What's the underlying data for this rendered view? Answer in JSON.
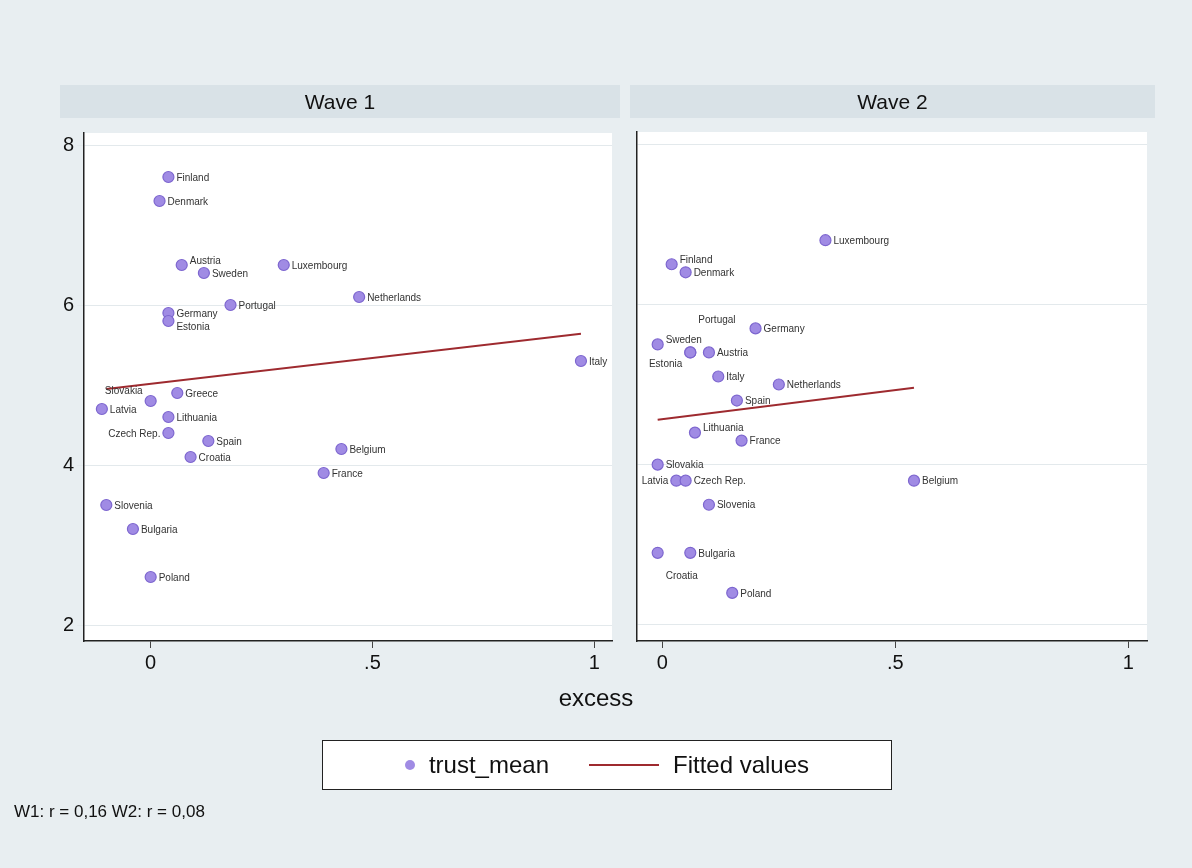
{
  "chart_data": [
    {
      "type": "scatter",
      "title": "Wave 1",
      "xlabel": "excess",
      "xlim": [
        -0.15,
        1.04
      ],
      "ylim": [
        1.8,
        8.15
      ],
      "xticks": [
        {
          "value": 0,
          "label": "0"
        },
        {
          "value": 0.5,
          "label": ".5"
        },
        {
          "value": 1,
          "label": "1"
        }
      ],
      "yticks": [
        2,
        4,
        6,
        8
      ],
      "grid": "y",
      "legend": "bottom",
      "series": [
        {
          "name": "trust_mean",
          "marker": "circle",
          "color": "#a08be4",
          "x": [
            0.04,
            0.02,
            0.07,
            0.12,
            0.3,
            0.47,
            0.18,
            0.04,
            0.04,
            0.97,
            0.06,
            0.0,
            -0.11,
            0.04,
            0.04,
            0.13,
            0.09,
            0.43,
            0.39,
            -0.1,
            -0.04,
            0.0
          ],
          "values": [
            7.6,
            7.3,
            6.5,
            6.4,
            6.5,
            6.1,
            6.0,
            5.9,
            5.8,
            5.3,
            4.9,
            4.8,
            4.7,
            4.6,
            4.4,
            4.3,
            4.1,
            4.2,
            3.9,
            3.5,
            3.2,
            2.6
          ]
        },
        {
          "name": "Fitted values",
          "type": "line",
          "color": "#9e2a2f",
          "x": [
            -0.1,
            0.97
          ],
          "values": [
            4.95,
            5.64
          ]
        }
      ],
      "annotations": [
        {
          "text": "Finland",
          "x": 0.04,
          "y": 7.6
        },
        {
          "text": "Denmark",
          "x": 0.02,
          "y": 7.3
        },
        {
          "text": "Austria",
          "x": 0.07,
          "y": 6.5
        },
        {
          "text": "Sweden",
          "x": 0.12,
          "y": 6.4
        },
        {
          "text": "Luxembourg",
          "x": 0.3,
          "y": 6.5
        },
        {
          "text": "Netherlands",
          "x": 0.47,
          "y": 6.1
        },
        {
          "text": "Portugal",
          "x": 0.18,
          "y": 6.0
        },
        {
          "text": "Germany",
          "x": 0.04,
          "y": 5.9
        },
        {
          "text": "Estonia",
          "x": 0.04,
          "y": 5.8
        },
        {
          "text": "Italy",
          "x": 0.97,
          "y": 5.3
        },
        {
          "text": "Greece",
          "x": 0.06,
          "y": 4.9
        },
        {
          "text": "Slovakia",
          "x": 0.0,
          "y": 4.8
        },
        {
          "text": "Latvia",
          "x": -0.11,
          "y": 4.7
        },
        {
          "text": "Lithuania",
          "x": 0.04,
          "y": 4.6
        },
        {
          "text": "Czech Rep.",
          "x": 0.04,
          "y": 4.4
        },
        {
          "text": "Spain",
          "x": 0.13,
          "y": 4.3
        },
        {
          "text": "Croatia",
          "x": 0.09,
          "y": 4.1
        },
        {
          "text": "Belgium",
          "x": 0.43,
          "y": 4.2
        },
        {
          "text": "France",
          "x": 0.39,
          "y": 3.9
        },
        {
          "text": "Slovenia",
          "x": -0.1,
          "y": 3.5
        },
        {
          "text": "Bulgaria",
          "x": -0.04,
          "y": 3.2
        },
        {
          "text": "Poland",
          "x": 0.0,
          "y": 2.6
        },
        "W1: r = 0,16 W2: r = 0,08"
      ]
    },
    {
      "type": "scatter",
      "title": "Wave 2",
      "xlim": [
        -0.055,
        1.04
      ],
      "ylim": [
        1.8,
        8.15
      ],
      "xticks": [
        {
          "value": 0,
          "label": "0"
        },
        {
          "value": 0.5,
          "label": ".5"
        },
        {
          "value": 1,
          "label": "1"
        }
      ],
      "yticks": [
        2,
        4,
        6,
        8
      ],
      "grid": "y",
      "tick_labels": "x",
      "series": [
        {
          "marker": "circle",
          "color": "#a08be4",
          "x": [
            0.35,
            0.02,
            0.05,
            0.2,
            -0.01,
            0.06,
            0.06,
            0.1,
            0.12,
            0.25,
            0.16,
            0.07,
            0.17,
            -0.01,
            0.03,
            0.05,
            0.54,
            0.1,
            -0.01,
            0.06,
            0.15
          ],
          "values": [
            6.8,
            6.5,
            6.4,
            5.7,
            5.5,
            5.4,
            5.4,
            5.4,
            5.1,
            5.0,
            4.8,
            4.4,
            4.3,
            4.0,
            3.8,
            3.8,
            3.8,
            3.5,
            2.9,
            2.9,
            2.4
          ]
        },
        {
          "type": "line",
          "color": "#9e2a2f",
          "x": [
            -0.01,
            0.54
          ],
          "values": [
            4.56,
            4.96
          ]
        }
      ],
      "annotations": [
        {
          "text": "Luxembourg",
          "x": 0.35,
          "y": 6.8
        },
        {
          "text": "Finland",
          "x": 0.02,
          "y": 6.5
        },
        {
          "text": "Denmark",
          "x": 0.05,
          "y": 6.4
        },
        {
          "text": "Germany",
          "x": 0.2,
          "y": 5.7
        },
        {
          "text": "Sweden",
          "x": -0.01,
          "y": 5.5
        },
        {
          "text": "Estonia",
          "x": 0.06,
          "y": 5.4
        },
        {
          "text": "Portugal",
          "x": 0.06,
          "y": 5.4
        },
        {
          "text": "Austria",
          "x": 0.1,
          "y": 5.4
        },
        {
          "text": "Italy",
          "x": 0.12,
          "y": 5.1
        },
        {
          "text": "Netherlands",
          "x": 0.25,
          "y": 5.0
        },
        {
          "text": "Spain",
          "x": 0.16,
          "y": 4.8
        },
        {
          "text": "Lithuania",
          "x": 0.07,
          "y": 4.4
        },
        {
          "text": "France",
          "x": 0.17,
          "y": 4.3
        },
        {
          "text": "Slovakia",
          "x": -0.01,
          "y": 4.0
        },
        {
          "text": "Latvia",
          "x": 0.03,
          "y": 3.8
        },
        {
          "text": "Czech Rep.",
          "x": 0.05,
          "y": 3.8
        },
        {
          "text": "Belgium",
          "x": 0.54,
          "y": 3.8
        },
        {
          "text": "Slovenia",
          "x": 0.1,
          "y": 3.5
        },
        {
          "text": "Croatia",
          "x": -0.01,
          "y": 2.9
        },
        {
          "text": "Bulgaria",
          "x": 0.06,
          "y": 2.9
        },
        {
          "text": "Poland",
          "x": 0.15,
          "y": 2.4
        }
      ]
    }
  ]
}
